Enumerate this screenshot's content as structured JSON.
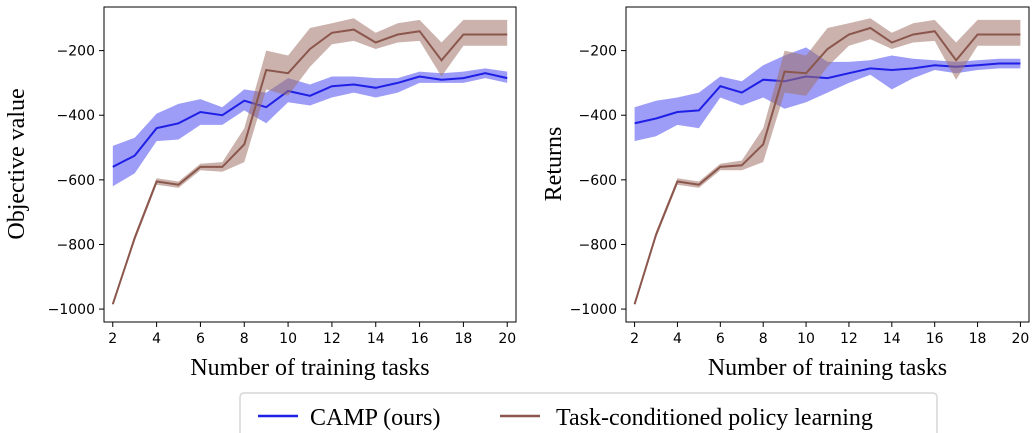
{
  "colors": {
    "camp": "#1f1fe6",
    "camp_band": "#4c4cf0",
    "baseline": "#8b574d",
    "baseline_band": "#a07268"
  },
  "legend": {
    "position": "bottom-center",
    "entries": [
      "CAMP (ours)",
      "Task-conditioned policy learning"
    ]
  },
  "chart_data": [
    {
      "type": "line",
      "ylabel": "Objective value",
      "xlabel": "Number of training tasks",
      "xlim": [
        1.6,
        20.4
      ],
      "ylim": [
        -1040,
        -65
      ],
      "xticks": [
        2,
        4,
        6,
        8,
        10,
        12,
        14,
        16,
        18,
        20
      ],
      "yticks": [
        -1000,
        -800,
        -600,
        -400,
        -200
      ],
      "ytick_labels": [
        "−1000",
        "−800",
        "−600",
        "−400",
        "−200"
      ],
      "grid": false,
      "x": [
        2,
        3,
        4,
        5,
        6,
        7,
        8,
        9,
        10,
        11,
        12,
        13,
        14,
        15,
        16,
        17,
        18,
        19,
        20
      ],
      "series": [
        {
          "name": "CAMP (ours)",
          "mean": [
            -560,
            -525,
            -440,
            -425,
            -390,
            -400,
            -355,
            -375,
            -325,
            -340,
            -310,
            -305,
            -315,
            -300,
            -280,
            -290,
            -285,
            -270,
            -285
          ],
          "lower": [
            -620,
            -580,
            -480,
            -475,
            -430,
            -430,
            -385,
            -425,
            -360,
            -370,
            -345,
            -330,
            -345,
            -330,
            -300,
            -300,
            -300,
            -285,
            -300
          ],
          "upper": [
            -495,
            -470,
            -395,
            -365,
            -350,
            -375,
            -320,
            -330,
            -285,
            -305,
            -280,
            -280,
            -285,
            -285,
            -265,
            -270,
            -265,
            -255,
            -265
          ]
        },
        {
          "name": "Task-conditioned policy learning",
          "mean": [
            -985,
            -780,
            -605,
            -615,
            -560,
            -560,
            -490,
            -260,
            -270,
            -195,
            -145,
            -135,
            -175,
            -150,
            -140,
            -230,
            -150,
            -150,
            -150
          ],
          "lower": [
            -990,
            -790,
            -615,
            -625,
            -570,
            -575,
            -545,
            -320,
            -340,
            -250,
            -180,
            -170,
            -195,
            -175,
            -170,
            -280,
            -185,
            -185,
            -185
          ],
          "upper": [
            -980,
            -770,
            -595,
            -605,
            -550,
            -545,
            -440,
            -200,
            -215,
            -130,
            -115,
            -100,
            -145,
            -115,
            -105,
            -175,
            -105,
            -105,
            -105
          ]
        }
      ]
    },
    {
      "type": "line",
      "ylabel": "Returns",
      "xlabel": "Number of training tasks",
      "xlim": [
        1.6,
        20.4
      ],
      "ylim": [
        -1040,
        -65
      ],
      "xticks": [
        2,
        4,
        6,
        8,
        10,
        12,
        14,
        16,
        18,
        20
      ],
      "yticks": [
        -1000,
        -800,
        -600,
        -400,
        -200
      ],
      "ytick_labels": [
        "−1000",
        "−800",
        "−600",
        "−400",
        "−200"
      ],
      "grid": false,
      "x": [
        2,
        3,
        4,
        5,
        6,
        7,
        8,
        9,
        10,
        11,
        12,
        13,
        14,
        15,
        16,
        17,
        18,
        19,
        20
      ],
      "series": [
        {
          "name": "CAMP (ours)",
          "mean": [
            -425,
            -410,
            -390,
            -385,
            -310,
            -330,
            -290,
            -295,
            -280,
            -285,
            -270,
            -255,
            -260,
            -255,
            -245,
            -250,
            -245,
            -240,
            -240
          ],
          "lower": [
            -480,
            -465,
            -430,
            -440,
            -345,
            -370,
            -345,
            -380,
            -360,
            -330,
            -300,
            -275,
            -320,
            -285,
            -260,
            -270,
            -260,
            -255,
            -255
          ],
          "upper": [
            -375,
            -355,
            -345,
            -330,
            -280,
            -295,
            -245,
            -215,
            -190,
            -235,
            -235,
            -230,
            -215,
            -225,
            -230,
            -235,
            -230,
            -225,
            -225
          ]
        },
        {
          "name": "Task-conditioned policy learning",
          "mean": [
            -985,
            -770,
            -605,
            -615,
            -560,
            -555,
            -490,
            -265,
            -270,
            -195,
            -150,
            -130,
            -175,
            -150,
            -140,
            -230,
            -150,
            -150,
            -150
          ],
          "lower": [
            -990,
            -780,
            -615,
            -625,
            -570,
            -570,
            -545,
            -330,
            -340,
            -250,
            -185,
            -165,
            -195,
            -175,
            -170,
            -290,
            -185,
            -185,
            -185
          ],
          "upper": [
            -980,
            -760,
            -595,
            -605,
            -550,
            -540,
            -440,
            -200,
            -215,
            -130,
            -115,
            -100,
            -145,
            -115,
            -105,
            -175,
            -105,
            -105,
            -105
          ]
        }
      ]
    }
  ]
}
